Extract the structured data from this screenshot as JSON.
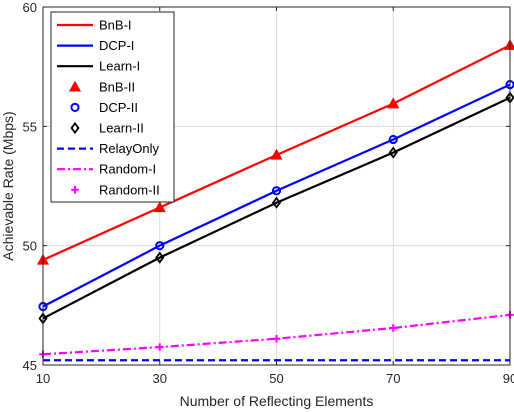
{
  "chart_data": {
    "type": "line",
    "title": "",
    "xlabel": "Number of Reflecting Elements",
    "ylabel": "Achievable Rate (Mbps)",
    "x": [
      10,
      30,
      50,
      70,
      90
    ],
    "xlim": [
      10,
      90
    ],
    "ylim": [
      45,
      60
    ],
    "xticks": [
      "10",
      "30",
      "50",
      "70",
      "90"
    ],
    "yticks": [
      "45",
      "50",
      "55",
      "60"
    ],
    "grid": true,
    "legend_position": "top-left",
    "series": [
      {
        "name": "BnB-I",
        "style": "line",
        "dash": "solid",
        "color": "#ff0000",
        "values": [
          49.4,
          51.6,
          53.8,
          55.95,
          58.4
        ]
      },
      {
        "name": "DCP-I",
        "style": "line",
        "dash": "solid",
        "color": "#0000ff",
        "values": [
          47.45,
          50.0,
          52.3,
          54.45,
          56.75
        ]
      },
      {
        "name": "Learn-I",
        "style": "line",
        "dash": "solid",
        "color": "#000000",
        "values": [
          46.95,
          49.5,
          51.8,
          53.9,
          56.2
        ]
      },
      {
        "name": "BnB-II",
        "style": "marker",
        "marker": "triangle",
        "color": "#ff0000",
        "values": [
          49.4,
          51.6,
          53.8,
          55.95,
          58.4
        ]
      },
      {
        "name": "DCP-II",
        "style": "marker",
        "marker": "circle",
        "color": "#0000ff",
        "values": [
          47.45,
          50.0,
          52.3,
          54.45,
          56.75
        ]
      },
      {
        "name": "Learn-II",
        "style": "marker",
        "marker": "diamond",
        "color": "#000000",
        "values": [
          46.95,
          49.5,
          51.8,
          53.9,
          56.2
        ]
      },
      {
        "name": "RelayOnly",
        "style": "line",
        "dash": "dashed",
        "color": "#0000ff",
        "values": [
          45.2,
          45.2,
          45.2,
          45.2,
          45.2
        ]
      },
      {
        "name": "Random-I",
        "style": "line",
        "dash": "dashdot",
        "color": "#ff00ff",
        "values": [
          45.45,
          45.75,
          46.1,
          46.55,
          47.1
        ]
      },
      {
        "name": "Random-II",
        "style": "marker",
        "marker": "plus",
        "color": "#ff00ff",
        "values": [
          45.45,
          45.75,
          46.1,
          46.55,
          47.1
        ]
      }
    ]
  }
}
